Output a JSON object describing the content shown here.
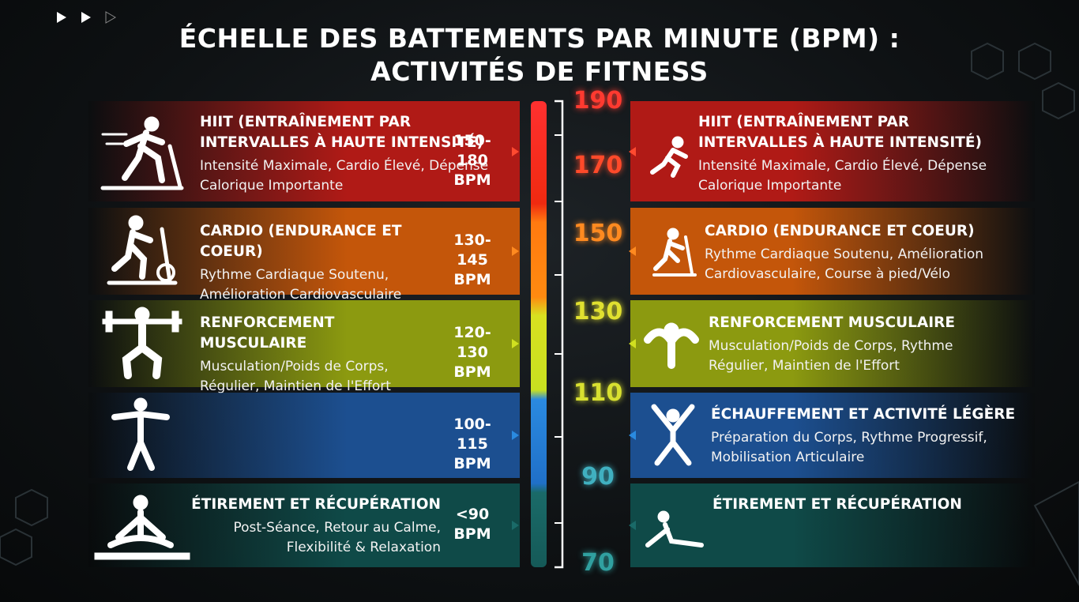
{
  "title_lines": [
    "ÉCHELLE DES BATTEMENTS PAR MINUTE (BPM) :",
    "ACTIVITÉS DE FITNESS"
  ],
  "scale_ticks": [
    190,
    170,
    150,
    130,
    110,
    90,
    70
  ],
  "left_rows": [
    {
      "title": "HIIT (ENTRAÎNEMENT PAR INTERVALLES À HAUTE INTENSITÉ)",
      "description": "Intensité Maximale, Cardio Élevé, Dépense Calorique Importante",
      "range": "150-180 BPM"
    },
    {
      "title": "CARDIO (ENDURANCE ET COEUR)",
      "description": "Rythme Cardiaque Soutenu, Amélioration Cardiovasculaire",
      "range": "130-145 BPM"
    },
    {
      "title": "RENFORCEMENT MUSCULAIRE",
      "description": "Musculation/Poids de Corps, Régulier, Maintien de l'Effort",
      "range": "120-130 BPM"
    },
    {
      "range": "100-115 BPM"
    },
    {
      "title": "ÉTIREMENT ET RÉCUPÉRATION",
      "description": "Post-Séance, Retour au Calme, Flexibilité & Relaxation",
      "range": "<90 BPM"
    }
  ],
  "right_rows": [
    {
      "title": "HIIT (ENTRAÎNEMENT PAR INTERVALLES À HAUTE INTENSITÉ)",
      "description": "Intensité Maximale, Cardio Élevé, Dépense Calorique Importante"
    },
    {
      "title": "CARDIO (ENDURANCE ET COEUR)",
      "description": "Rythme Cardiaque Soutenu, Amélioration Cardiovasculaire, Course à pied/Vélo"
    },
    {
      "title": "RENFORCEMENT MUSCULAIRE",
      "description": "Musculation/Poids de Corps, Rythme Régulier, Maintien de l'Effort"
    },
    {
      "title": "ÉCHAUFFEMENT ET ACTIVITÉ LÉGÈRE",
      "description": "Préparation du Corps, Rythme Progressif, Mobilisation Articulaire"
    },
    {
      "title": "ÉTIREMENT ET RÉCUPÉRATION"
    }
  ]
}
